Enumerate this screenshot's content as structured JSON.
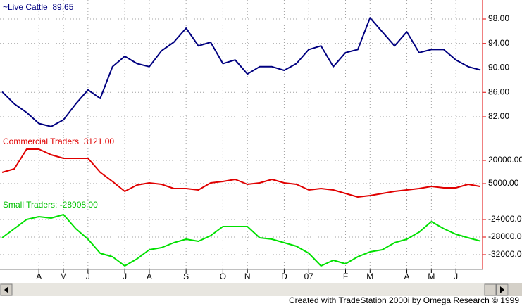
{
  "chart_data": [
    {
      "type": "line",
      "title": "~Live Cattle  89.65",
      "color": "#000080",
      "values": [
        86.1,
        84.1,
        82.7,
        80.9,
        80.4,
        81.5,
        84.1,
        86.4,
        85.0,
        90.2,
        91.9,
        90.7,
        90.2,
        92.8,
        94.2,
        96.5,
        93.6,
        94.2,
        90.7,
        91.3,
        89.0,
        90.2,
        90.2,
        89.6,
        90.7,
        93.0,
        93.6,
        90.2,
        92.5,
        93.0,
        98.2,
        95.9,
        93.6,
        95.9,
        92.5,
        93.0,
        93.0,
        91.3,
        90.2,
        89.65
      ],
      "ylim": [
        78.66,
        101.11
      ],
      "yticks": [
        {
          "value": 98,
          "label": "98.00"
        },
        {
          "value": 94,
          "label": "94.00"
        },
        {
          "value": 90,
          "label": "90.00"
        },
        {
          "value": 86,
          "label": "86.00"
        },
        {
          "value": 82,
          "label": "82.00"
        }
      ],
      "grid": true
    },
    {
      "type": "line",
      "title": "Commercial Traders  3121.00",
      "color": "#e00000",
      "values": [
        12270,
        14545,
        27270,
        27270,
        23640,
        21360,
        21360,
        21360,
        12270,
        6360,
        0,
        4090,
        5450,
        4545,
        1820,
        1820,
        910,
        5450,
        6360,
        7730,
        4545,
        5450,
        7730,
        5450,
        4545,
        910,
        1820,
        910,
        -1360,
        -3640,
        -2730,
        -1360,
        0,
        910,
        1820,
        3180,
        2270,
        2270,
        4545,
        3121
      ],
      "ylim": [
        -5909,
        35000
      ],
      "yticks": [
        {
          "value": 20000,
          "label": "20000.00"
        },
        {
          "value": 5000,
          "label": "5000.00"
        }
      ],
      "grid": true
    },
    {
      "type": "line",
      "title": "Small Traders: -28908.00",
      "color": "#00e000",
      "values": [
        -28160,
        -26080,
        -24000,
        -23360,
        -23680,
        -22880,
        -26080,
        -28480,
        -31680,
        -32480,
        -34560,
        -32960,
        -30880,
        -30400,
        -29280,
        -28480,
        -28960,
        -27680,
        -25600,
        -25600,
        -25600,
        -28160,
        -28480,
        -29280,
        -30080,
        -31680,
        -34560,
        -33280,
        -34080,
        -32480,
        -31360,
        -30880,
        -29280,
        -28480,
        -26880,
        -24480,
        -26080,
        -27360,
        -28160,
        -28908
      ],
      "ylim": [
        -35360,
        -19680
      ],
      "yticks": [
        {
          "value": -24000,
          "label": "-24000.00"
        },
        {
          "value": -28000,
          "label": "-28000.00"
        },
        {
          "value": -32000,
          "label": "-32000.00"
        }
      ],
      "grid": true,
      "categories": [
        null,
        null,
        null,
        "A",
        null,
        "M",
        null,
        "J",
        null,
        null,
        "J",
        null,
        "A",
        null,
        null,
        "S",
        null,
        null,
        "O",
        null,
        "N",
        null,
        null,
        "D",
        null,
        "07",
        null,
        null,
        "F",
        null,
        "M",
        null,
        null,
        "A",
        null,
        "M",
        null,
        "J",
        null,
        null
      ]
    }
  ],
  "footer": "Created with TradeStation 2000i by Omega Research © 1999"
}
